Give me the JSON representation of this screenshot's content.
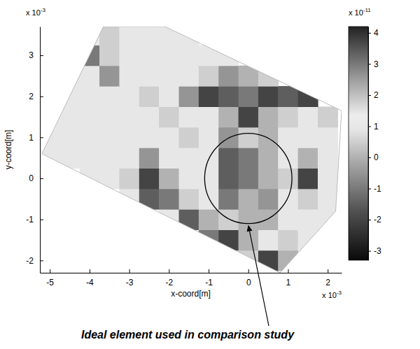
{
  "chart_data": {
    "type": "heatmap",
    "x_label": "x-coord[m]",
    "y_label": "y-coord[m]",
    "x_multiplier": {
      "base": "x 10",
      "exponent": "-3"
    },
    "y_multiplier": {
      "base": "x 10",
      "exponent": "-3"
    },
    "xlim": [
      -5.25,
      2.35
    ],
    "ylim": [
      -2.3,
      3.7
    ],
    "xticks": [
      -5,
      -4,
      -3,
      -2,
      -1,
      0,
      1,
      2
    ],
    "yticks": [
      -2,
      -1,
      0,
      1,
      2,
      3
    ],
    "x": [
      -5,
      -4.5,
      -4,
      -3.5,
      -3,
      -2.5,
      -2,
      -1.5,
      -1,
      -0.5,
      0,
      0.5,
      1,
      1.5,
      2
    ],
    "y": [
      -2,
      -1.5,
      -1,
      -0.5,
      0,
      0.5,
      1,
      1.5,
      2,
      2.5,
      3,
      3.5
    ],
    "z": [
      [
        null,
        null,
        null,
        null,
        null,
        null,
        null,
        null,
        null,
        null,
        0.5,
        -2,
        0,
        null,
        null
      ],
      [
        null,
        null,
        null,
        null,
        null,
        null,
        null,
        null,
        -1,
        -2,
        0,
        1,
        0.5,
        1,
        null
      ],
      [
        null,
        null,
        null,
        null,
        null,
        null,
        1,
        -1.5,
        0,
        0.5,
        0,
        0,
        1,
        1,
        1
      ],
      [
        null,
        null,
        null,
        null,
        1,
        -1.5,
        -1,
        0.5,
        1,
        -1,
        0,
        -0.5,
        1,
        0.5,
        1
      ],
      [
        null,
        null,
        1,
        1,
        0.5,
        -2,
        0,
        1,
        1,
        -1.5,
        -1,
        0,
        0.5,
        -2,
        1
      ],
      [
        1,
        1,
        1,
        1,
        1,
        -0.5,
        1,
        1,
        1,
        -1.5,
        -1,
        0,
        1,
        0,
        1
      ],
      [
        1,
        1,
        1,
        1,
        1,
        1,
        1,
        0.5,
        1,
        -0.5,
        0.5,
        0,
        1,
        1,
        1
      ],
      [
        1,
        1,
        1,
        1,
        1,
        1,
        0.5,
        1,
        1,
        0,
        -2,
        0,
        0.5,
        1,
        0.5
      ],
      [
        null,
        1,
        1,
        1,
        1,
        0.5,
        1,
        -0.5,
        -2,
        -1.5,
        -1,
        -2,
        -1.5,
        -2,
        null
      ],
      [
        null,
        1,
        1,
        -0.5,
        1,
        1,
        1,
        1,
        0.5,
        -0.5,
        0,
        0.5,
        null,
        null,
        null
      ],
      [
        null,
        null,
        -1,
        0.5,
        1,
        1,
        1,
        1,
        1,
        1,
        null,
        null,
        null,
        null,
        null
      ],
      [
        null,
        null,
        1,
        0.5,
        1,
        1,
        1,
        1,
        null,
        null,
        null,
        null,
        null,
        null,
        null
      ]
    ],
    "domain_outline": {
      "x": [
        -5.2,
        -3.65,
        -2.1,
        2.35,
        2.2,
        0.8
      ],
      "y": [
        0.6,
        3.7,
        3.7,
        1.65,
        -0.8,
        -2.3
      ]
    },
    "colorbar": {
      "lim": [
        -3.3,
        4.2
      ],
      "ticks": [
        -3,
        -2,
        -1,
        0,
        1,
        2,
        3,
        4
      ],
      "multiplier": {
        "base": "x 10",
        "exponent": "-11"
      }
    },
    "annotation": {
      "text": "Ideal element used in comparison study",
      "circle": {
        "cx": 0,
        "cy": 0,
        "r": 1.1
      }
    }
  }
}
